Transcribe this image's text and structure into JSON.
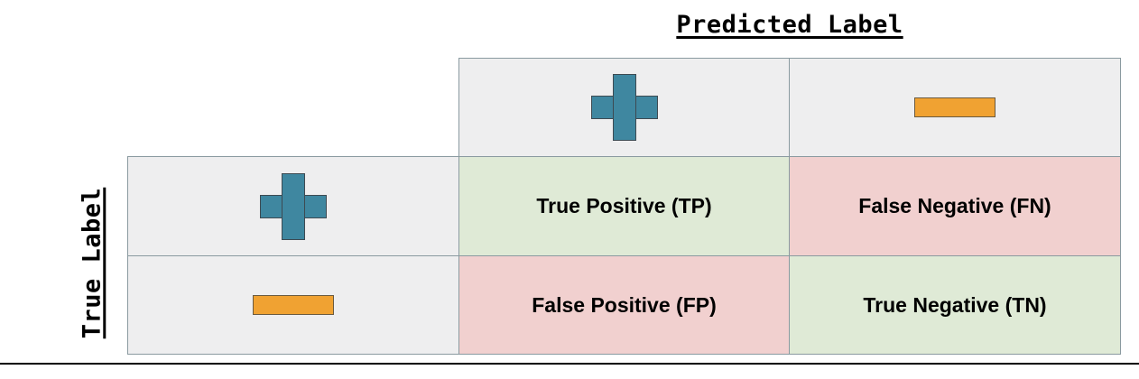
{
  "predicted_axis": {
    "title": "Predicted Label",
    "columns": [
      {
        "icon": "plus-icon"
      },
      {
        "icon": "minus-icon"
      }
    ]
  },
  "true_axis": {
    "title": "True Label",
    "rows": [
      {
        "icon": "plus-icon"
      },
      {
        "icon": "minus-icon"
      }
    ]
  },
  "matrix": {
    "tp": "True Positive (TP)",
    "fn": "False Negative (FN)",
    "fp": "False Positive (FP)",
    "tn": "True Negative (TN)"
  },
  "colors": {
    "header": "#eeeeef",
    "correct": "#dfead6",
    "incorrect": "#f1d0cf",
    "plus": "#3f87a0",
    "minus": "#f0a232"
  }
}
